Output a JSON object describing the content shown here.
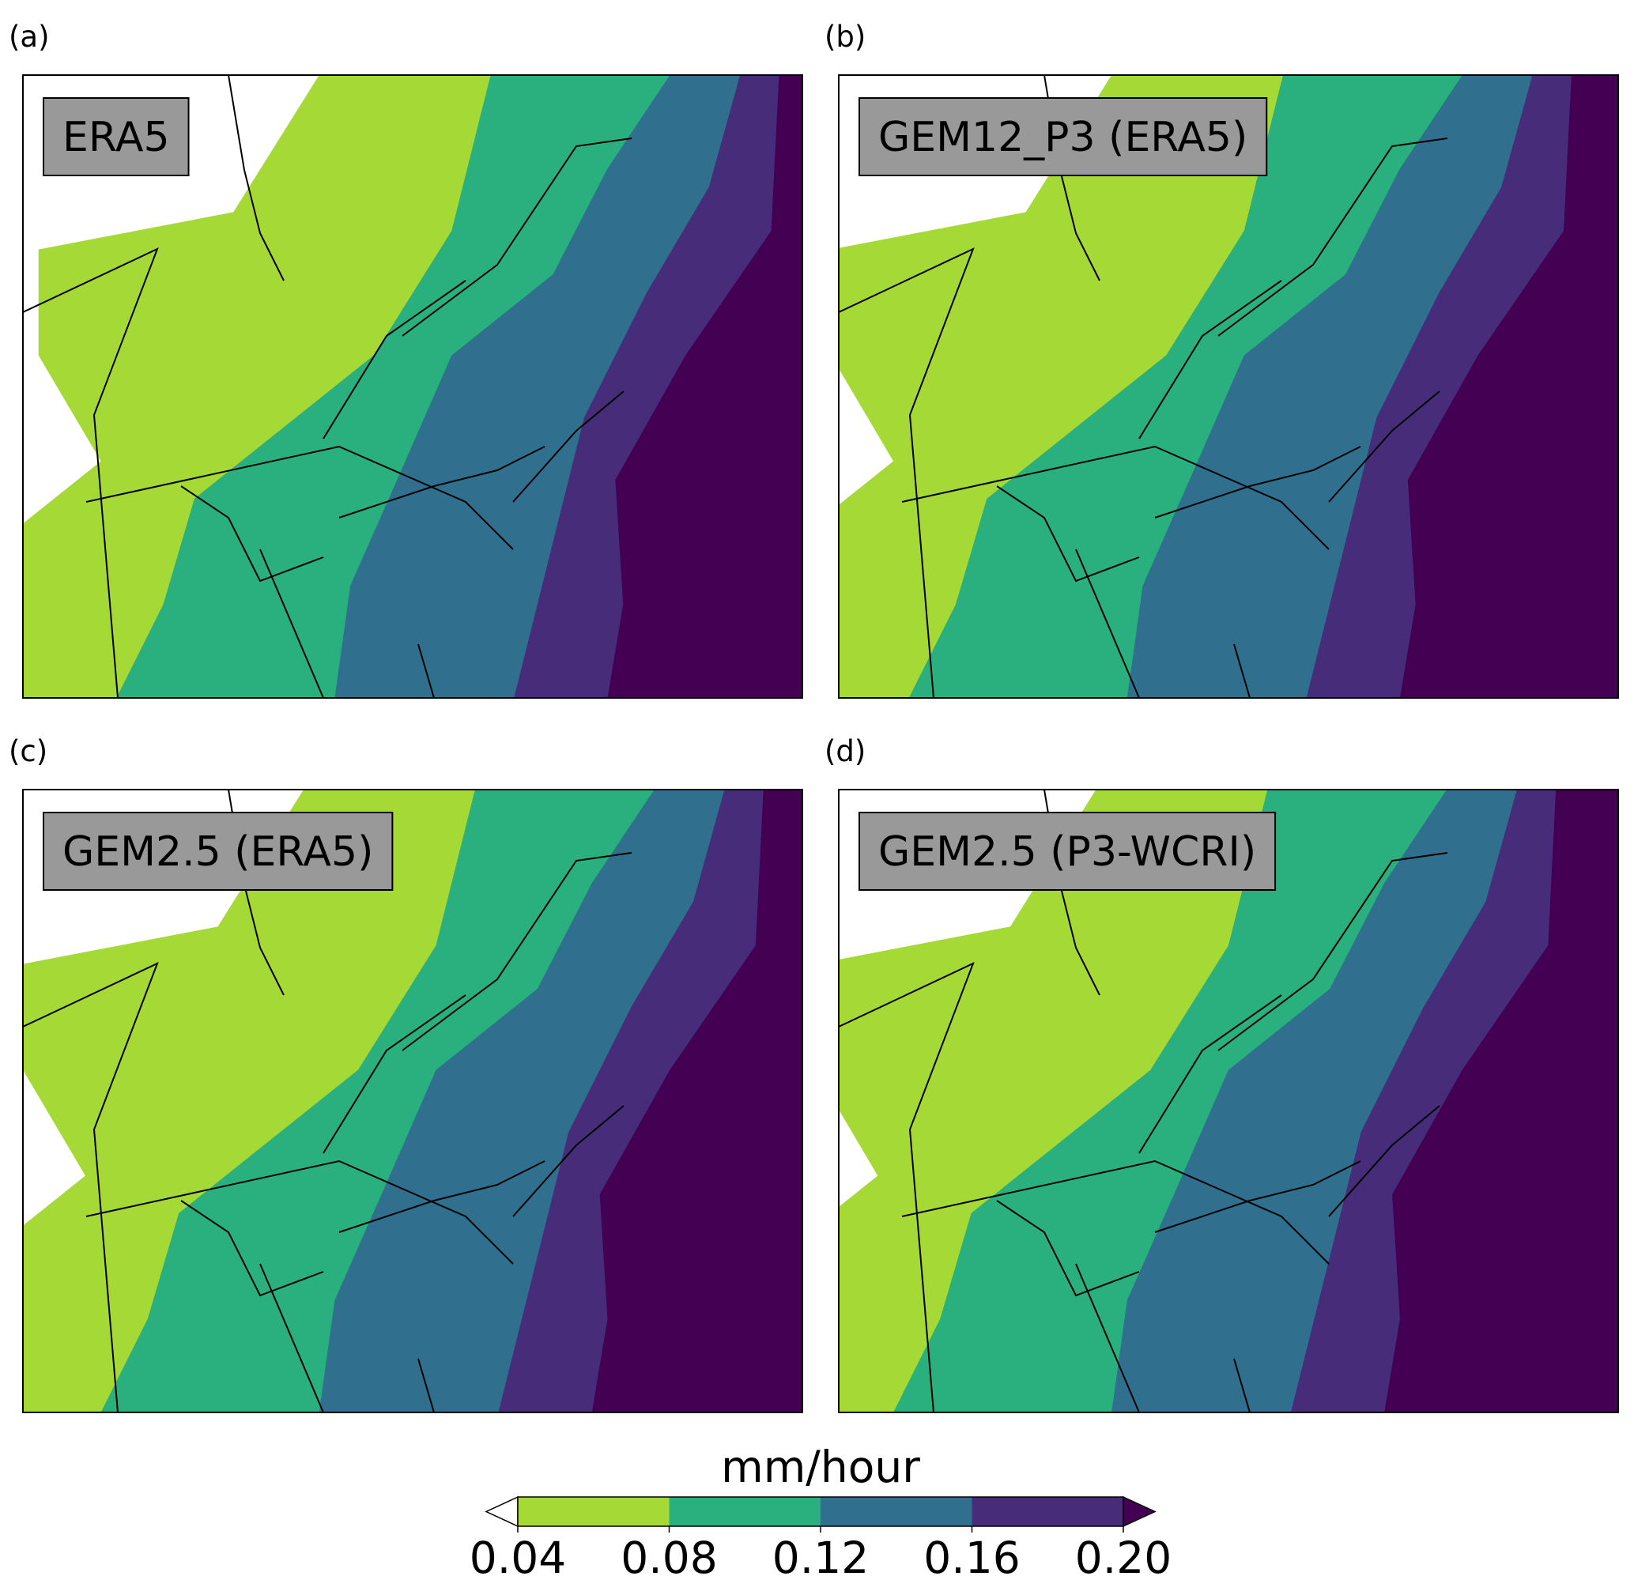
{
  "panels": [
    {
      "label": "(a)",
      "title": "ERA5"
    },
    {
      "label": "(b)",
      "title": "GEM12_P3 (ERA5)"
    },
    {
      "label": "(c)",
      "title": "GEM2.5 (ERA5)"
    },
    {
      "label": "(d)",
      "title": "GEM2.5 (P3-WCRI)"
    }
  ],
  "colorbar": {
    "title": "mm/hour",
    "ticks": [
      0.04,
      0.08,
      0.12,
      0.16,
      {
        "value": 0.2,
        "label": "0.20"
      }
    ],
    "colors": [
      "#ffffff",
      "#a5d936",
      "#2ab07f",
      "#30708e",
      "#472c7a",
      "#440154"
    ],
    "extend": "both"
  }
}
